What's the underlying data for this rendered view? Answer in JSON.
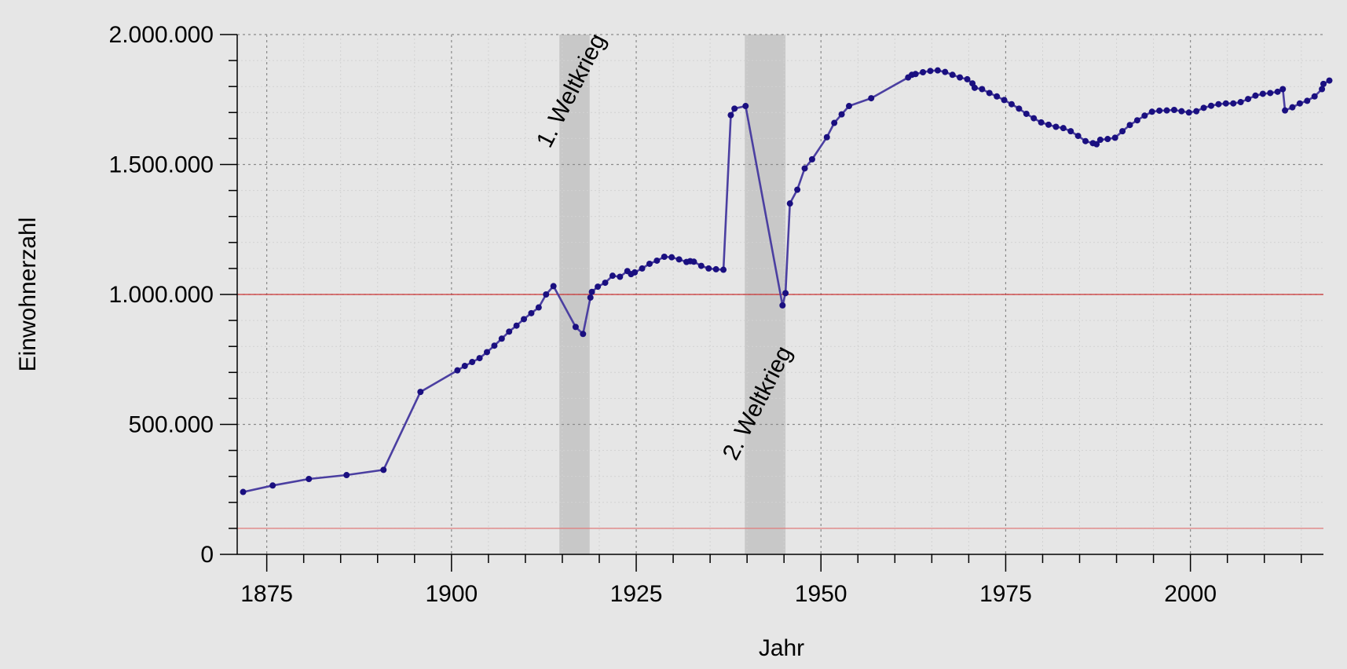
{
  "chart_data": {
    "type": "line",
    "title": "",
    "xlabel": "Jahr",
    "ylabel": "Einwohnerzahl",
    "xlim": [
      1871,
      2018
    ],
    "ylim": [
      0,
      2000000
    ],
    "x_ticks": [
      {
        "value": 1875,
        "label": "1875"
      },
      {
        "value": 1900,
        "label": "1900"
      },
      {
        "value": 1925,
        "label": "1925"
      },
      {
        "value": 1950,
        "label": "1950"
      },
      {
        "value": 1975,
        "label": "1975"
      },
      {
        "value": 2000,
        "label": "2000"
      }
    ],
    "y_ticks": [
      {
        "value": 0,
        "label": "0"
      },
      {
        "value": 500000,
        "label": "500.000"
      },
      {
        "value": 1000000,
        "label": "1.000.000"
      },
      {
        "value": 1500000,
        "label": "1.500.000"
      },
      {
        "value": 2000000,
        "label": "2.000.000"
      }
    ],
    "grid": true,
    "reference_lines": [
      {
        "y": 1000000,
        "color": "#cc3333"
      },
      {
        "y": 100000,
        "color": "#e07a7a"
      }
    ],
    "shaded_periods": [
      {
        "label": "1. Weltkrieg",
        "start": 1914.6,
        "end": 1918.7
      },
      {
        "label": "2. Weltkrieg",
        "start": 1939.7,
        "end": 1945.2
      }
    ],
    "colors": {
      "line": "#4b3fa1",
      "points": "#1a0f80",
      "background": "#e6e6e6",
      "shade": "#c8c8c8"
    },
    "series": [
      {
        "points": [
          [
            1871.8,
            240000
          ],
          [
            1875.8,
            265000
          ],
          [
            1880.7,
            290000
          ],
          [
            1885.8,
            305000
          ],
          [
            1890.8,
            325000
          ],
          [
            1895.8,
            625000
          ],
          [
            1900.8,
            708000
          ],
          [
            1901.8,
            725000
          ],
          [
            1902.8,
            740000
          ],
          [
            1903.8,
            755000
          ],
          [
            1904.8,
            778000
          ],
          [
            1905.8,
            803000
          ],
          [
            1906.8,
            830000
          ],
          [
            1907.8,
            857000
          ],
          [
            1908.8,
            880000
          ],
          [
            1909.8,
            905000
          ],
          [
            1910.8,
            928000
          ],
          [
            1911.8,
            950000
          ],
          [
            1912.8,
            1000000
          ],
          [
            1913.8,
            1032000
          ],
          [
            1916.8,
            875000
          ],
          [
            1917.8,
            848000
          ],
          [
            1918.8,
            988000
          ],
          [
            1919,
            1010000
          ],
          [
            1919.8,
            1030000
          ],
          [
            1920.8,
            1045000
          ],
          [
            1921.8,
            1072000
          ],
          [
            1922.8,
            1068000
          ],
          [
            1923.8,
            1090000
          ],
          [
            1924.3,
            1078000
          ],
          [
            1924.8,
            1085000
          ],
          [
            1925.8,
            1100000
          ],
          [
            1926.8,
            1118000
          ],
          [
            1927.8,
            1130000
          ],
          [
            1928.8,
            1145000
          ],
          [
            1929.8,
            1143000
          ],
          [
            1930.8,
            1135000
          ],
          [
            1931.8,
            1125000
          ],
          [
            1932.3,
            1128000
          ],
          [
            1932.8,
            1126000
          ],
          [
            1933.8,
            1110000
          ],
          [
            1934.8,
            1100000
          ],
          [
            1935.8,
            1097000
          ],
          [
            1936.8,
            1095000
          ],
          [
            1937.8,
            1690000
          ],
          [
            1938.3,
            1715000
          ],
          [
            1939.8,
            1725000
          ],
          [
            1944.8,
            958000
          ],
          [
            1945.2,
            1005000
          ],
          [
            1945.8,
            1350000
          ],
          [
            1946.8,
            1403000
          ],
          [
            1947.8,
            1485000
          ],
          [
            1948.8,
            1520000
          ],
          [
            1950.8,
            1605000
          ],
          [
            1951.8,
            1660000
          ],
          [
            1952.8,
            1693000
          ],
          [
            1953.8,
            1725000
          ],
          [
            1956.8,
            1755000
          ],
          [
            1961.8,
            1835000
          ],
          [
            1962.3,
            1845000
          ],
          [
            1962.8,
            1848000
          ],
          [
            1963.8,
            1855000
          ],
          [
            1964.8,
            1860000
          ],
          [
            1965.8,
            1862000
          ],
          [
            1966.8,
            1856000
          ],
          [
            1967.8,
            1845000
          ],
          [
            1968.8,
            1835000
          ],
          [
            1969.8,
            1828000
          ],
          [
            1970.5,
            1812000
          ],
          [
            1970.8,
            1795000
          ],
          [
            1971.8,
            1790000
          ],
          [
            1972.8,
            1775000
          ],
          [
            1973.8,
            1762000
          ],
          [
            1974.8,
            1748000
          ],
          [
            1975.8,
            1732000
          ],
          [
            1976.8,
            1715000
          ],
          [
            1977.8,
            1695000
          ],
          [
            1978.8,
            1678000
          ],
          [
            1979.8,
            1662000
          ],
          [
            1980.8,
            1653000
          ],
          [
            1981.8,
            1645000
          ],
          [
            1982.8,
            1640000
          ],
          [
            1983.8,
            1628000
          ],
          [
            1984.8,
            1610000
          ],
          [
            1985.8,
            1590000
          ],
          [
            1986.8,
            1582000
          ],
          [
            1987.3,
            1578000
          ],
          [
            1987.8,
            1595000
          ],
          [
            1988.8,
            1598000
          ],
          [
            1989.8,
            1603000
          ],
          [
            1990.8,
            1628000
          ],
          [
            1991.8,
            1652000
          ],
          [
            1992.8,
            1670000
          ],
          [
            1993.8,
            1688000
          ],
          [
            1994.8,
            1703000
          ],
          [
            1995.8,
            1707000
          ],
          [
            1996.8,
            1708000
          ],
          [
            1997.8,
            1710000
          ],
          [
            1998.8,
            1705000
          ],
          [
            1999.8,
            1700000
          ],
          [
            2000.8,
            1705000
          ],
          [
            2001.8,
            1718000
          ],
          [
            2002.8,
            1726000
          ],
          [
            2003.8,
            1732000
          ],
          [
            2004.8,
            1735000
          ],
          [
            2005.8,
            1735000
          ],
          [
            2006.8,
            1740000
          ],
          [
            2007.8,
            1752000
          ],
          [
            2008.8,
            1765000
          ],
          [
            2009.8,
            1772000
          ],
          [
            2010.8,
            1775000
          ],
          [
            2011.8,
            1780000
          ],
          [
            2012.5,
            1790000
          ],
          [
            2012.8,
            1708000
          ],
          [
            2013.8,
            1720000
          ],
          [
            2014.8,
            1735000
          ],
          [
            2015.8,
            1745000
          ],
          [
            2016.8,
            1762000
          ],
          [
            2017.8,
            1790000
          ],
          [
            2018,
            1810000
          ],
          [
            2018.8,
            1823000
          ]
        ]
      }
    ]
  }
}
